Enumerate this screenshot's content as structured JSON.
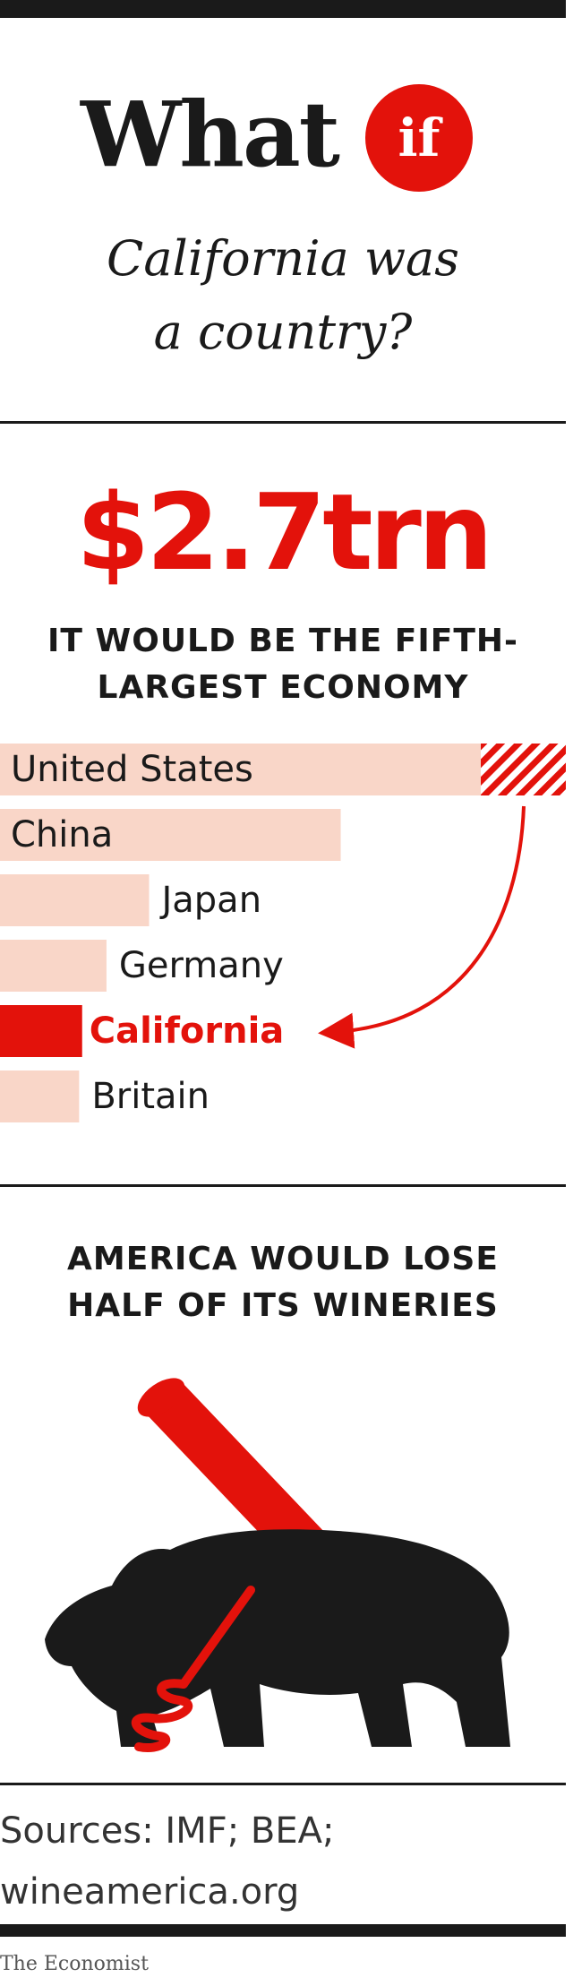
{
  "header": {
    "word": "What",
    "badge": "if",
    "subtitle_line1": "California was",
    "subtitle_line2": "a country?"
  },
  "stat": {
    "value": "$2.7trn",
    "headline_line1": "IT WOULD BE THE FIFTH-",
    "headline_line2": "LARGEST ECONOMY"
  },
  "chart_data": {
    "type": "bar",
    "orientation": "horizontal",
    "categories": [
      "United States",
      "China",
      "Japan",
      "Germany",
      "California",
      "Britain"
    ],
    "values": [
      18.6,
      11.2,
      4.9,
      3.5,
      2.7,
      2.6
    ],
    "unit": "$trn",
    "highlight": "California",
    "grid": false,
    "colors": {
      "bar": "#f9d6c8",
      "highlight": "#e3120b",
      "text": "#1a1a1a"
    }
  },
  "wineries": {
    "headline_line1": "AMERICA WOULD LOSE",
    "headline_line2": "HALF OF ITS WINERIES",
    "illustration": "bear-with-corkscrew-icon"
  },
  "sources": {
    "line1": "Sources: IMF; BEA;",
    "line2": "wineamerica.org"
  },
  "credit": "The Economist",
  "colors": {
    "accent": "#e3120b",
    "ink": "#1a1a1a",
    "bar": "#f9d6c8"
  }
}
